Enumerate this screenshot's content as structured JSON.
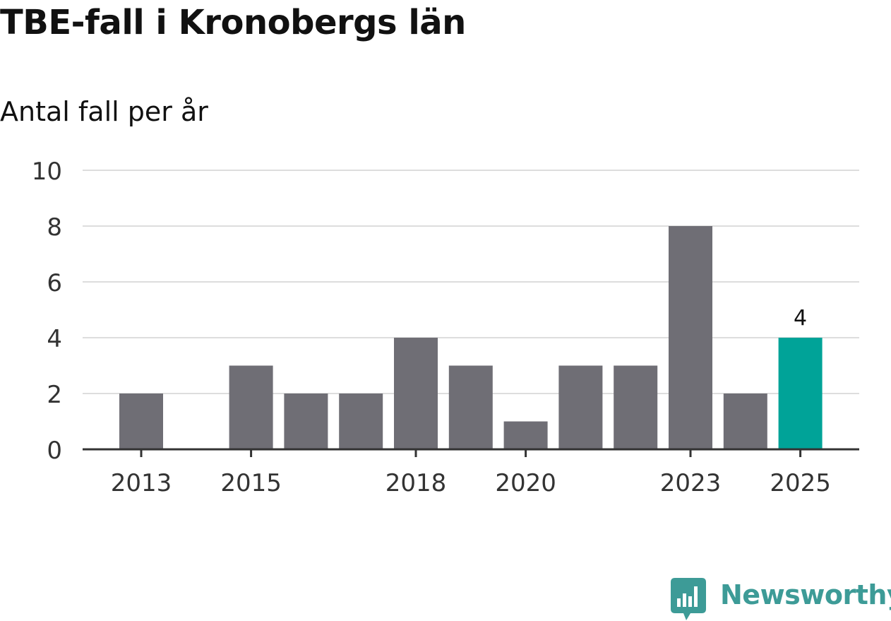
{
  "title": "TBE-fall i Kronobergs län",
  "subtitle": "Antal fall per år",
  "brand": {
    "name": "Newsworthy",
    "color": "#3d9b97",
    "icon": "bar-chart-speech-bubble-icon"
  },
  "colors": {
    "bar": "#6f6e75",
    "highlight": "#00a398",
    "grid": "#dddddd",
    "axis": "#333333",
    "text": "#333333"
  },
  "chart_data": {
    "type": "bar",
    "title": "TBE-fall i Kronobergs län",
    "subtitle": "Antal fall per år",
    "xlabel": "",
    "ylabel": "Antal fall per år",
    "categories": [
      2013,
      2014,
      2015,
      2016,
      2017,
      2018,
      2019,
      2020,
      2021,
      2022,
      2023,
      2024,
      2025
    ],
    "values": [
      2,
      0,
      3,
      2,
      2,
      4,
      3,
      1,
      3,
      3,
      8,
      2,
      4
    ],
    "ylim": [
      0,
      10
    ],
    "yticks": [
      0,
      2,
      4,
      6,
      8,
      10
    ],
    "xtick_labels": [
      "2013",
      "2015",
      "2018",
      "2020",
      "2023",
      "2025"
    ],
    "highlight": {
      "category": 2025,
      "value": 4,
      "label": "4"
    },
    "grid": true
  }
}
